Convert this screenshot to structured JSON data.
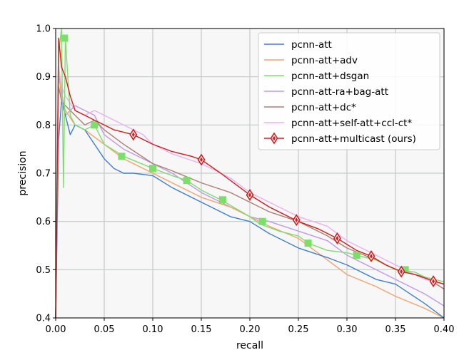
{
  "chart_data": {
    "type": "line",
    "title": "",
    "xlabel": "recall",
    "ylabel": "precision",
    "xlim": [
      0.0,
      0.4
    ],
    "ylim": [
      0.4,
      1.0
    ],
    "x_ticks": [
      "0.00",
      "0.05",
      "0.10",
      "0.15",
      "0.20",
      "0.25",
      "0.30",
      "0.35",
      "0.40"
    ],
    "y_ticks": [
      "0.4",
      "0.5",
      "0.6",
      "0.7",
      "0.8",
      "0.9",
      "1.0"
    ],
    "grid": true,
    "legend_position": "top-right",
    "series": [
      {
        "name": "pcnn-att",
        "color": "#3d7fd6",
        "marker": "none",
        "x": [
          0.0,
          0.003,
          0.006,
          0.01,
          0.015,
          0.02,
          0.03,
          0.04,
          0.05,
          0.06,
          0.07,
          0.08,
          0.1,
          0.12,
          0.15,
          0.18,
          0.2,
          0.22,
          0.25,
          0.28,
          0.3,
          0.33,
          0.35,
          0.38,
          0.4
        ],
        "y": [
          0.4,
          0.77,
          0.85,
          0.82,
          0.78,
          0.8,
          0.79,
          0.76,
          0.73,
          0.71,
          0.7,
          0.7,
          0.695,
          0.67,
          0.64,
          0.61,
          0.6,
          0.575,
          0.545,
          0.525,
          0.51,
          0.48,
          0.47,
          0.43,
          0.4
        ]
      },
      {
        "name": "pcnn-att+adv",
        "color": "#f5a26b",
        "marker": "none",
        "x": [
          0.0,
          0.003,
          0.006,
          0.01,
          0.02,
          0.03,
          0.05,
          0.07,
          0.1,
          0.12,
          0.15,
          0.18,
          0.2,
          0.22,
          0.25,
          0.28,
          0.3,
          0.33,
          0.35,
          0.38,
          0.4
        ],
        "y": [
          0.4,
          0.92,
          0.85,
          0.83,
          0.8,
          0.79,
          0.76,
          0.73,
          0.7,
          0.68,
          0.65,
          0.63,
          0.61,
          0.59,
          0.565,
          0.52,
          0.49,
          0.465,
          0.445,
          0.42,
          0.4
        ]
      },
      {
        "name": "pcnn-att+dsgan",
        "color": "#7dde6b",
        "marker": "square",
        "x": [
          0.0,
          0.003,
          0.006,
          0.008,
          0.01,
          0.015,
          0.02,
          0.03,
          0.04,
          0.05,
          0.07,
          0.1,
          0.12,
          0.135,
          0.15,
          0.17,
          0.2,
          0.21,
          0.23,
          0.25,
          0.26,
          0.28,
          0.3,
          0.31,
          0.33,
          0.35,
          0.37,
          0.38,
          0.4
        ],
        "y": [
          0.4,
          0.95,
          1.0,
          0.67,
          0.98,
          0.82,
          0.8,
          0.79,
          0.8,
          0.76,
          0.735,
          0.71,
          0.695,
          0.685,
          0.665,
          0.645,
          0.61,
          0.595,
          0.58,
          0.57,
          0.555,
          0.54,
          0.535,
          0.53,
          0.52,
          0.5,
          0.495,
          0.485,
          0.475
        ],
        "markers_x": [
          0.009,
          0.04,
          0.068,
          0.1,
          0.135,
          0.172,
          0.213,
          0.26,
          0.31,
          0.36
        ],
        "markers_y": [
          0.98,
          0.8,
          0.735,
          0.71,
          0.685,
          0.645,
          0.6,
          0.555,
          0.53,
          0.5
        ]
      },
      {
        "name": "pcnn-att-ra+bag-att",
        "color": "#bf98ee",
        "marker": "none",
        "x": [
          0.0,
          0.003,
          0.006,
          0.01,
          0.02,
          0.03,
          0.04,
          0.05,
          0.07,
          0.1,
          0.12,
          0.15,
          0.18,
          0.2,
          0.22,
          0.25,
          0.28,
          0.3,
          0.33,
          0.35,
          0.38,
          0.4
        ],
        "y": [
          0.4,
          0.9,
          0.87,
          0.82,
          0.84,
          0.83,
          0.82,
          0.78,
          0.75,
          0.72,
          0.7,
          0.66,
          0.63,
          0.61,
          0.6,
          0.58,
          0.56,
          0.53,
          0.5,
          0.48,
          0.45,
          0.425
        ]
      },
      {
        "name": "pcnn-att+dc*",
        "color": "#b07e72",
        "marker": "none",
        "x": [
          0.0,
          0.003,
          0.006,
          0.01,
          0.02,
          0.03,
          0.04,
          0.05,
          0.07,
          0.1,
          0.12,
          0.15,
          0.18,
          0.2,
          0.22,
          0.25,
          0.28,
          0.3,
          0.33,
          0.35,
          0.38,
          0.4
        ],
        "y": [
          0.4,
          0.88,
          0.85,
          0.84,
          0.82,
          0.8,
          0.81,
          0.79,
          0.76,
          0.72,
          0.705,
          0.68,
          0.66,
          0.64,
          0.62,
          0.6,
          0.57,
          0.545,
          0.52,
          0.5,
          0.485,
          0.46
        ]
      },
      {
        "name": "pcnn-att+self-att+ccl-ct*",
        "color": "#eab0f2",
        "marker": "none",
        "x": [
          0.0,
          0.003,
          0.006,
          0.01,
          0.02,
          0.03,
          0.04,
          0.05,
          0.07,
          0.09,
          0.1,
          0.12,
          0.15,
          0.18,
          0.2,
          0.22,
          0.25,
          0.28,
          0.3,
          0.33,
          0.35,
          0.38,
          0.4
        ],
        "y": [
          0.4,
          0.92,
          0.88,
          0.86,
          0.83,
          0.82,
          0.83,
          0.82,
          0.8,
          0.78,
          0.76,
          0.74,
          0.72,
          0.69,
          0.66,
          0.64,
          0.61,
          0.59,
          0.56,
          0.53,
          0.51,
          0.48,
          0.47
        ]
      },
      {
        "name": "pcnn-att+multicast (ours)",
        "color": "#d61c1c",
        "marker": "diamond",
        "x": [
          0.0,
          0.003,
          0.006,
          0.01,
          0.015,
          0.02,
          0.03,
          0.04,
          0.05,
          0.06,
          0.08,
          0.1,
          0.12,
          0.14,
          0.15,
          0.17,
          0.2,
          0.22,
          0.25,
          0.27,
          0.29,
          0.31,
          0.325,
          0.34,
          0.356,
          0.37,
          0.39,
          0.4
        ],
        "y": [
          0.4,
          0.98,
          0.92,
          0.9,
          0.86,
          0.83,
          0.82,
          0.81,
          0.8,
          0.79,
          0.78,
          0.76,
          0.745,
          0.735,
          0.728,
          0.7,
          0.655,
          0.63,
          0.6,
          0.585,
          0.565,
          0.54,
          0.528,
          0.51,
          0.496,
          0.49,
          0.476,
          0.47
        ],
        "markers_x": [
          0.08,
          0.15,
          0.2,
          0.248,
          0.29,
          0.325,
          0.356,
          0.389
        ],
        "markers_y": [
          0.78,
          0.728,
          0.655,
          0.603,
          0.565,
          0.528,
          0.496,
          0.476
        ]
      }
    ]
  }
}
